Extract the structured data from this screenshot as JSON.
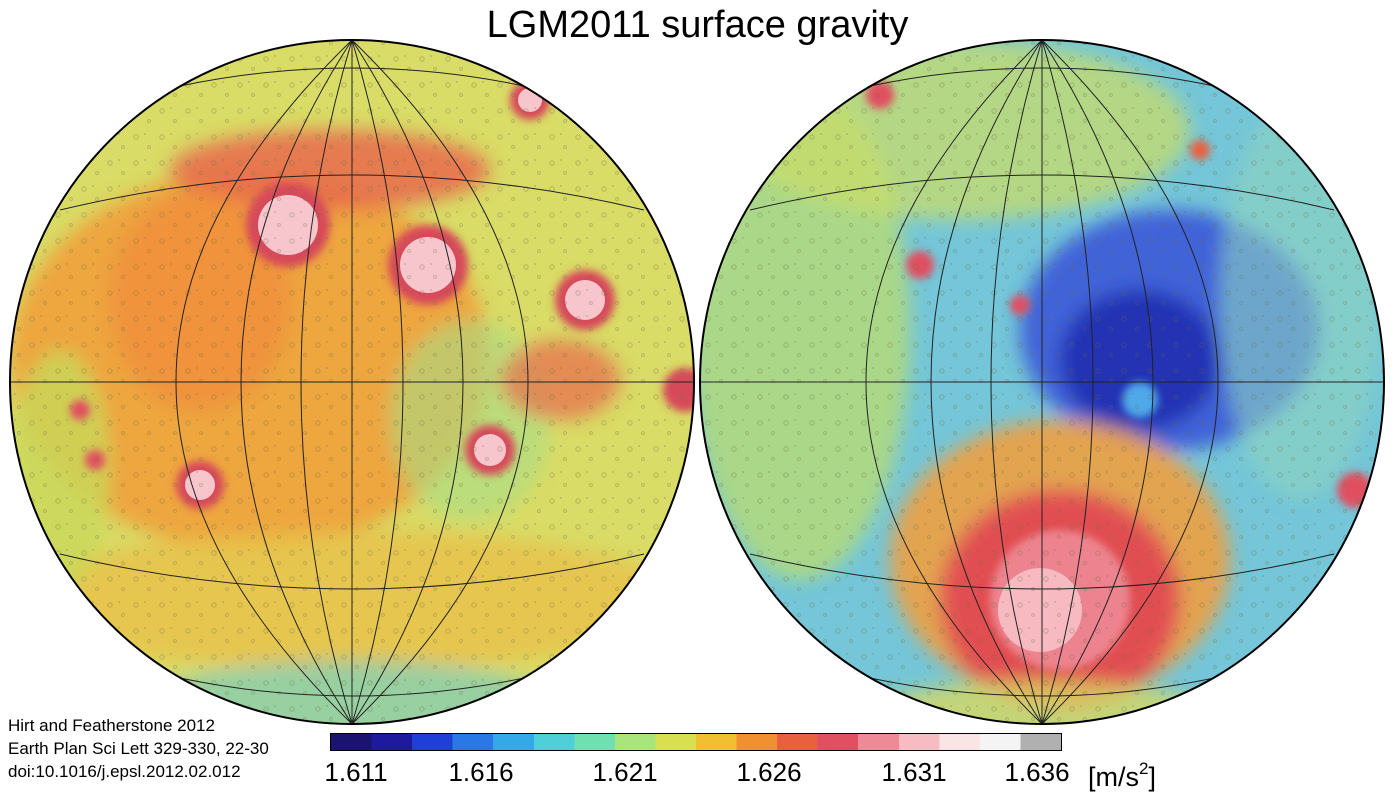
{
  "title": "LGM2011 surface gravity",
  "credits": {
    "line1": "Hirt and Featherstone 2012",
    "line2": "Earth Plan Sci Lett 329-330, 22-30",
    "line3": "doi:10.1016/j.epsl.2012.02.012"
  },
  "colorbar": {
    "ticks": [
      "1.611",
      "1.616",
      "1.621",
      "1.626",
      "1.631",
      "1.636"
    ],
    "min": 1.611,
    "max": 1.636,
    "unit_base": "[m/s",
    "unit_exp": "2",
    "unit_close": "]",
    "colors": [
      "#1a1470",
      "#1e1aa0",
      "#1f3fd8",
      "#2a78e6",
      "#35a8e8",
      "#4fd0d8",
      "#6fe0b0",
      "#a8e57a",
      "#d8e050",
      "#f0c030",
      "#f09030",
      "#e86040",
      "#e05060",
      "#ee8a95",
      "#f7bcc2",
      "#fbe4e6",
      "#f4f4f4",
      "#b0b0b0"
    ]
  },
  "maps": [
    {
      "name": "near-side-hemisphere",
      "base_color": "#d6d964"
    },
    {
      "name": "far-side-hemisphere",
      "base_color": "#6fc3da"
    }
  ]
}
